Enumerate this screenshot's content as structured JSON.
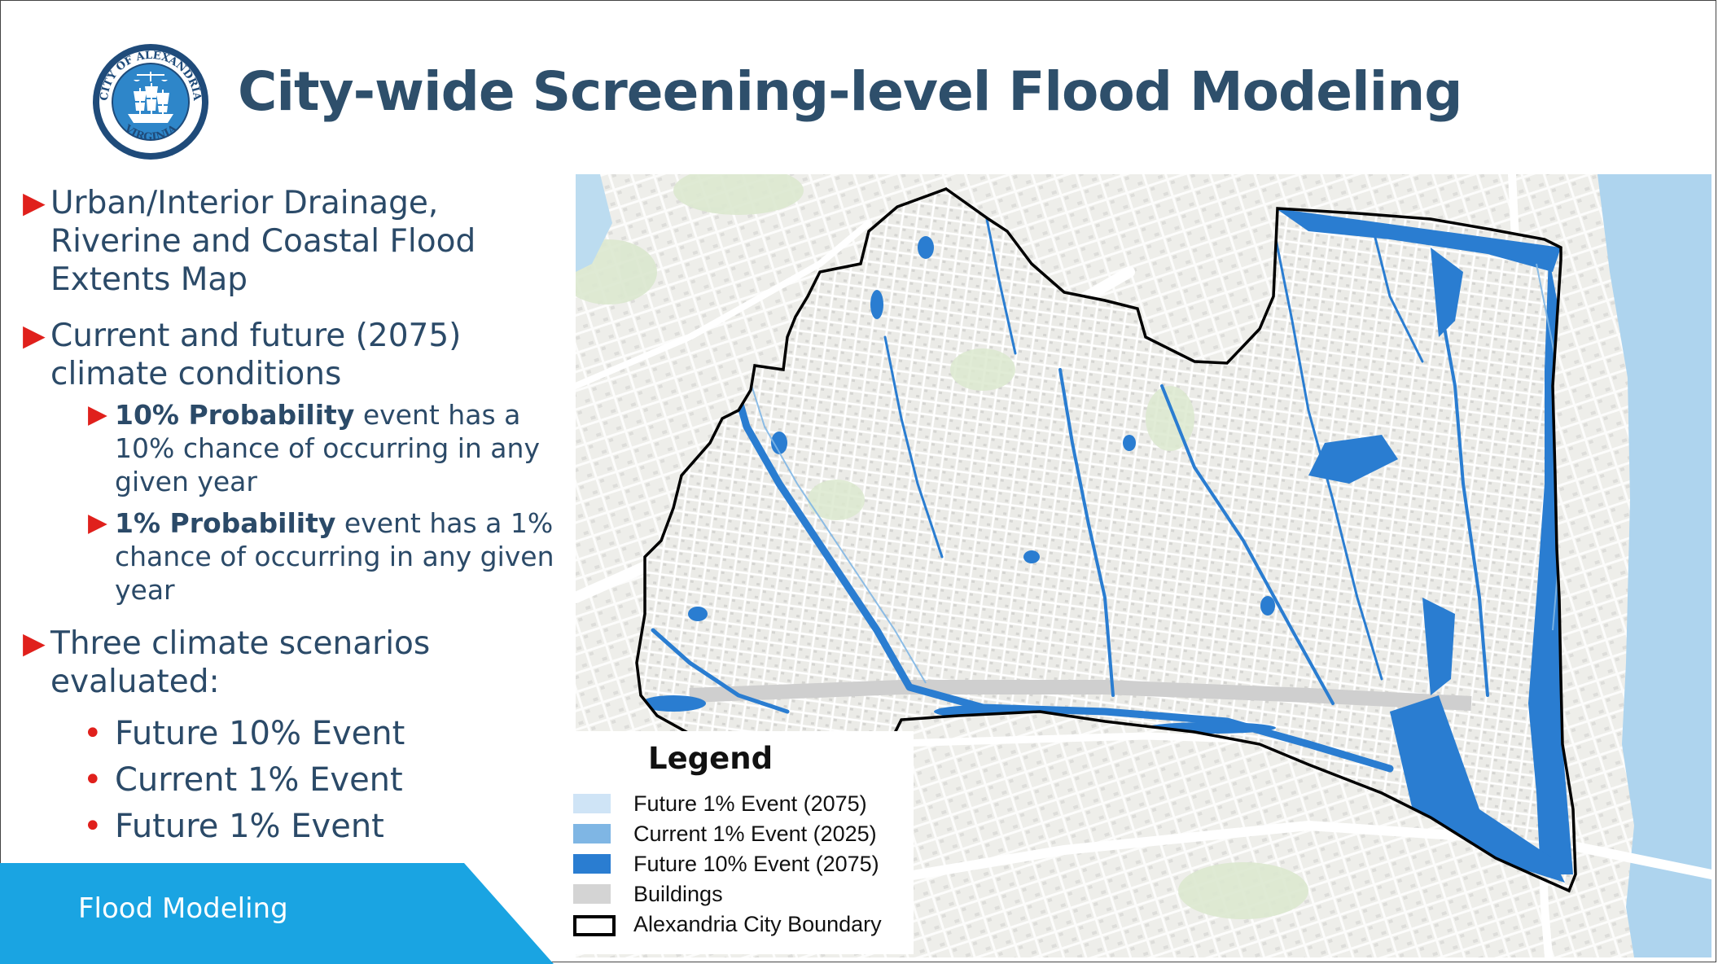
{
  "slide": {
    "title": "City-wide Screening-level Flood Modeling",
    "logo": {
      "arc_top": "CITY OF ALEXANDRIA",
      "arc_bottom": "VIRGINIA"
    }
  },
  "bullets": {
    "item1": "Urban/Interior Drainage, Riverine and Coastal Flood Extents Map",
    "item2": "Current and future (2075) climate conditions",
    "sub1_bold": "10% Probability",
    "sub1_rest": " event has a 10% chance of occurring in any given year",
    "sub2_bold": "1% Probability",
    "sub2_rest": " event has a 1% chance of occurring in any given year",
    "item3": "Three climate scenarios evaluated:",
    "scenarios": [
      "Future 10% Event",
      "Current 1% Event",
      "Future 1% Event"
    ]
  },
  "footer": {
    "label": "Flood Modeling"
  },
  "legend": {
    "title": "Legend",
    "items": [
      {
        "label": "Future 1% Event (2075)",
        "color": "#cfe4f6"
      },
      {
        "label": "Current 1% Event (2025)",
        "color": "#7fb6e4"
      },
      {
        "label": "Future 10% Event (2075)",
        "color": "#2a7dd1"
      },
      {
        "label": "Buildings",
        "color": "#d4d4d4"
      },
      {
        "label": "Alexandria City Boundary",
        "color": "#000000"
      }
    ]
  },
  "colors": {
    "title": "#2e4f6b",
    "accent_red": "#e0201c",
    "footer_blue": "#1aa4e2",
    "flood_blue": "#2a7dd1",
    "river": "#aed4ee",
    "basemap": "#eeeeea"
  }
}
